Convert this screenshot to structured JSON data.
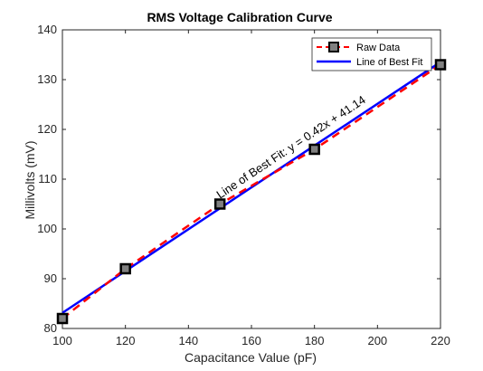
{
  "chart_data": {
    "type": "line",
    "title": "RMS Voltage Calibration Curve",
    "xlabel": "Capacitance Value (pF)",
    "ylabel": "Millivolts (mV)",
    "xlim": [
      100,
      220
    ],
    "ylim": [
      80,
      140
    ],
    "xticks": [
      100,
      120,
      140,
      160,
      180,
      200,
      220
    ],
    "yticks": [
      80,
      90,
      100,
      110,
      120,
      130,
      140
    ],
    "grid": false,
    "legend_position": "top-right",
    "series": [
      {
        "name": "Raw Data",
        "style": "dashed-with-square-markers",
        "color": "#ff0000",
        "marker_fill": "#808080",
        "x": [
          100,
          120,
          150,
          180,
          220
        ],
        "y": [
          82,
          92,
          105,
          116,
          133
        ]
      },
      {
        "name": "Line of Best Fit",
        "style": "solid",
        "color": "#0000ff",
        "slope": 0.42,
        "intercept": 41.14,
        "x": [
          100,
          220
        ],
        "y": [
          83.14,
          133.54
        ]
      }
    ],
    "annotation": {
      "text": "Line of Best Fit: y = 0.42x + 41.14",
      "x": 150,
      "y": 106
    }
  }
}
